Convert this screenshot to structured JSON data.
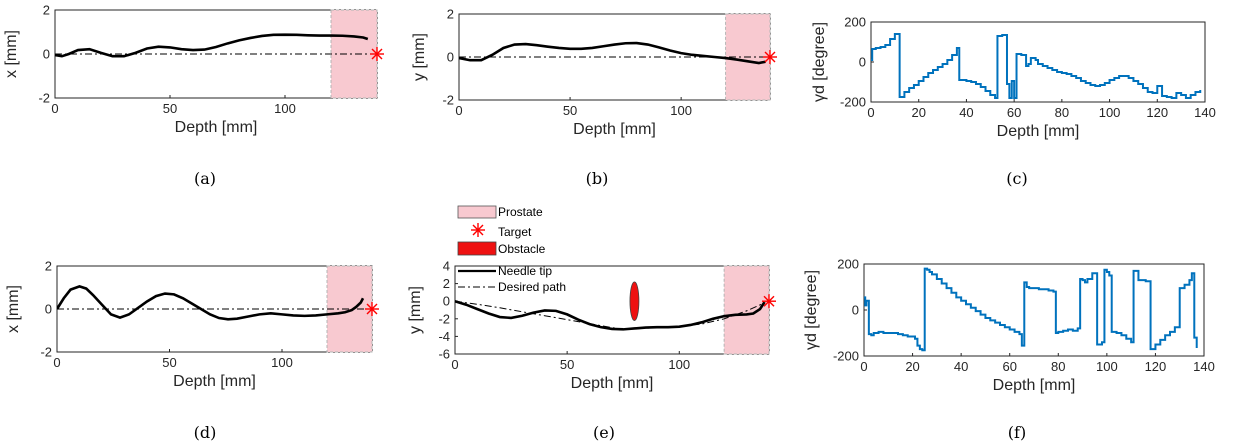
{
  "figure": {
    "captions": [
      "(a)",
      "(b)",
      "(c)",
      "(d)",
      "(e)",
      "(f)"
    ]
  },
  "colors": {
    "needle": "#000000",
    "desired": "#000000",
    "prostate_fill": "#f8c9d0",
    "prostate_edge": "#b5b5b5",
    "target": "#ff0000",
    "obstacle": "#ee1111",
    "steps": "#0072bd"
  },
  "legend": {
    "entries": [
      "Prostate",
      "Target",
      "Obstacle",
      "Needle tip",
      "Desired path"
    ]
  },
  "chart_data": [
    {
      "panel": "a",
      "type": "line",
      "xlabel": "Depth [mm]",
      "ylabel": "x [mm]",
      "xlim": [
        0,
        140
      ],
      "ylim": [
        -2,
        2
      ],
      "xticks": [
        0,
        50,
        100
      ],
      "yticks": [
        -2,
        0,
        2
      ],
      "prostate": [
        120,
        140
      ],
      "target": [
        140,
        0
      ],
      "series": [
        {
          "role": "needle",
          "x": [
            0,
            3,
            6,
            10,
            15,
            20,
            25,
            30,
            35,
            40,
            45,
            50,
            55,
            60,
            65,
            70,
            75,
            80,
            85,
            90,
            95,
            100,
            105,
            110,
            115,
            120,
            125,
            130,
            134,
            136
          ],
          "y": [
            -0.05,
            -0.1,
            0.0,
            0.18,
            0.22,
            0.05,
            -0.1,
            -0.1,
            0.05,
            0.25,
            0.33,
            0.3,
            0.22,
            0.18,
            0.2,
            0.32,
            0.48,
            0.62,
            0.73,
            0.82,
            0.87,
            0.88,
            0.87,
            0.85,
            0.84,
            0.84,
            0.83,
            0.8,
            0.75,
            0.68
          ]
        },
        {
          "role": "desired",
          "x": [
            0,
            140
          ],
          "y": [
            0,
            0
          ]
        }
      ]
    },
    {
      "panel": "b",
      "type": "line",
      "xlabel": "Depth [mm]",
      "ylabel": "y [mm]",
      "xlim": [
        0,
        140
      ],
      "ylim": [
        -2,
        2
      ],
      "xticks": [
        0,
        50,
        100
      ],
      "yticks": [
        -2,
        0,
        2
      ],
      "prostate": [
        120,
        140
      ],
      "target": [
        140,
        0
      ],
      "series": [
        {
          "role": "needle",
          "x": [
            0,
            5,
            10,
            15,
            20,
            25,
            30,
            35,
            40,
            45,
            50,
            55,
            60,
            65,
            70,
            75,
            80,
            85,
            90,
            95,
            100,
            105,
            110,
            115,
            120,
            125,
            130,
            135,
            138
          ],
          "y": [
            -0.05,
            -0.15,
            -0.15,
            0.1,
            0.42,
            0.58,
            0.6,
            0.55,
            0.48,
            0.42,
            0.38,
            0.38,
            0.42,
            0.5,
            0.58,
            0.64,
            0.65,
            0.58,
            0.45,
            0.3,
            0.18,
            0.1,
            0.05,
            0.0,
            -0.05,
            -0.12,
            -0.2,
            -0.28,
            -0.22
          ]
        },
        {
          "role": "desired",
          "x": [
            0,
            140
          ],
          "y": [
            0,
            0
          ]
        }
      ]
    },
    {
      "panel": "c",
      "type": "line",
      "xlabel": "Depth [mm]",
      "ylabel": "γd [degree]",
      "xlim": [
        0,
        140
      ],
      "ylim": [
        -200,
        200
      ],
      "xticks": [
        0,
        20,
        40,
        60,
        80,
        100,
        120,
        140
      ],
      "yticks": [
        -200,
        0,
        200
      ],
      "step": true,
      "series": [
        {
          "role": "steps",
          "x": [
            0,
            0.5,
            2,
            4,
            6,
            8,
            10,
            11,
            12,
            14,
            16,
            18,
            20,
            22,
            24,
            26,
            28,
            30,
            32,
            34,
            36,
            37,
            38,
            40,
            42,
            44,
            46,
            48,
            50,
            52,
            53,
            54,
            55,
            56,
            57,
            58,
            59,
            60,
            61,
            62,
            63,
            64,
            65,
            66,
            67,
            68,
            69,
            70,
            72,
            74,
            76,
            78,
            80,
            82,
            84,
            86,
            88,
            90,
            92,
            94,
            96,
            98,
            100,
            102,
            104,
            106,
            108,
            110,
            112,
            114,
            116,
            118,
            120,
            122,
            124,
            126,
            128,
            130,
            132,
            134,
            136,
            138
          ],
          "y": [
            10,
            65,
            70,
            75,
            85,
            115,
            140,
            140,
            -175,
            -150,
            -130,
            -115,
            -95,
            -75,
            -55,
            -40,
            -25,
            -10,
            10,
            35,
            70,
            -90,
            -90,
            -95,
            -100,
            -110,
            -125,
            -145,
            -165,
            -180,
            130,
            130,
            135,
            135,
            -110,
            -180,
            -95,
            -180,
            40,
            40,
            35,
            35,
            -20,
            -10,
            20,
            20,
            10,
            -10,
            -20,
            -30,
            -40,
            -50,
            -55,
            -60,
            -70,
            -80,
            -95,
            -105,
            -115,
            -120,
            -115,
            -105,
            -90,
            -80,
            -70,
            -70,
            -80,
            -95,
            -110,
            -130,
            -150,
            -155,
            -120,
            -170,
            -175,
            -180,
            -155,
            -165,
            -180,
            -165,
            -150,
            -140
          ]
        }
      ]
    },
    {
      "panel": "d",
      "type": "line",
      "xlabel": "Depth [mm]",
      "ylabel": "x [mm]",
      "xlim": [
        0,
        140
      ],
      "ylim": [
        -2,
        2
      ],
      "xticks": [
        0,
        50,
        100
      ],
      "yticks": [
        -2,
        0,
        2
      ],
      "prostate": [
        120,
        140
      ],
      "target": [
        140,
        0
      ],
      "series": [
        {
          "role": "needle",
          "x": [
            0,
            3,
            6,
            10,
            13,
            16,
            20,
            24,
            28,
            32,
            36,
            40,
            44,
            48,
            52,
            56,
            60,
            64,
            68,
            72,
            76,
            80,
            85,
            90,
            95,
            100,
            105,
            110,
            115,
            120,
            125,
            128,
            131,
            133,
            135,
            136
          ],
          "y": [
            0.0,
            0.5,
            0.9,
            1.05,
            0.95,
            0.65,
            0.2,
            -0.25,
            -0.4,
            -0.25,
            0.05,
            0.35,
            0.6,
            0.72,
            0.68,
            0.5,
            0.25,
            0.0,
            -0.25,
            -0.42,
            -0.48,
            -0.45,
            -0.35,
            -0.25,
            -0.2,
            -0.25,
            -0.3,
            -0.32,
            -0.3,
            -0.25,
            -0.2,
            -0.15,
            -0.05,
            0.1,
            0.3,
            0.5
          ]
        },
        {
          "role": "desired",
          "x": [
            0,
            140
          ],
          "y": [
            0,
            0
          ]
        }
      ]
    },
    {
      "panel": "e",
      "type": "line",
      "xlabel": "Depth [mm]",
      "ylabel": "y [mm]",
      "xlim": [
        0,
        140
      ],
      "ylim": [
        -6,
        4
      ],
      "xticks": [
        0,
        50,
        100
      ],
      "yticks": [
        -6,
        -4,
        -2,
        0,
        2,
        4
      ],
      "prostate": [
        120,
        140
      ],
      "target": [
        140,
        0
      ],
      "obstacle": {
        "cx": 80,
        "cy": 0,
        "rx": 2,
        "ry": 2.2
      },
      "series": [
        {
          "role": "needle",
          "x": [
            0,
            5,
            10,
            15,
            20,
            25,
            30,
            35,
            40,
            45,
            50,
            55,
            60,
            65,
            70,
            75,
            80,
            85,
            90,
            95,
            100,
            105,
            110,
            115,
            120,
            125,
            130,
            133,
            136,
            138
          ],
          "y": [
            0.0,
            -0.4,
            -0.9,
            -1.4,
            -1.8,
            -1.9,
            -1.65,
            -1.3,
            -1.05,
            -1.1,
            -1.5,
            -2.1,
            -2.6,
            -2.95,
            -3.15,
            -3.2,
            -3.1,
            -3.0,
            -2.95,
            -2.95,
            -2.9,
            -2.7,
            -2.4,
            -2.0,
            -1.7,
            -1.55,
            -1.5,
            -1.4,
            -0.9,
            -0.1
          ]
        },
        {
          "role": "desired",
          "x": [
            0,
            10,
            20,
            30,
            40,
            50,
            60,
            70,
            75,
            80,
            90,
            100,
            110,
            120,
            130,
            138
          ],
          "y": [
            0.0,
            -0.35,
            -0.75,
            -1.2,
            -1.65,
            -2.1,
            -2.55,
            -3.0,
            -3.2,
            -3.15,
            -3.0,
            -2.85,
            -2.6,
            -2.0,
            -1.1,
            -0.2
          ]
        }
      ]
    },
    {
      "panel": "f",
      "type": "line",
      "xlabel": "Depth [mm]",
      "ylabel": "γd [degree]",
      "xlim": [
        0,
        140
      ],
      "ylim": [
        -200,
        200
      ],
      "xticks": [
        0,
        20,
        40,
        60,
        80,
        100,
        120,
        140
      ],
      "yticks": [
        -200,
        0,
        200
      ],
      "step": true,
      "series": [
        {
          "role": "steps",
          "x": [
            0,
            0.5,
            1,
            2,
            3,
            4,
            6,
            8,
            10,
            12,
            14,
            16,
            18,
            20,
            21,
            22,
            23,
            24,
            25,
            26,
            27,
            28,
            30,
            32,
            34,
            36,
            38,
            40,
            42,
            44,
            46,
            48,
            50,
            52,
            54,
            56,
            58,
            60,
            62,
            64,
            65,
            66,
            67,
            68,
            70,
            72,
            74,
            76,
            78,
            79,
            80,
            82,
            84,
            86,
            88,
            89,
            90,
            91,
            92,
            94,
            96,
            98,
            99,
            100,
            101,
            102,
            104,
            106,
            108,
            110,
            111,
            112,
            113,
            114,
            116,
            118,
            120,
            122,
            124,
            126,
            128,
            130,
            132,
            134,
            135,
            136,
            137
          ],
          "y": [
            55,
            20,
            40,
            -105,
            -110,
            -100,
            -95,
            -100,
            -100,
            -100,
            -105,
            -110,
            -115,
            -115,
            -125,
            -155,
            -170,
            -175,
            180,
            175,
            165,
            155,
            135,
            115,
            95,
            75,
            55,
            40,
            25,
            10,
            -5,
            -20,
            -35,
            -45,
            -55,
            -65,
            -75,
            -85,
            -95,
            -105,
            -155,
            120,
            100,
            95,
            95,
            90,
            90,
            85,
            80,
            -100,
            -95,
            -90,
            -85,
            -90,
            -80,
            135,
            130,
            120,
            135,
            160,
            -150,
            -140,
            175,
            165,
            150,
            -95,
            -100,
            -110,
            -125,
            -140,
            170,
            170,
            130,
            130,
            125,
            -170,
            -150,
            -130,
            -110,
            -95,
            -75,
            95,
            110,
            130,
            160,
            -120,
            -165
          ]
        }
      ]
    }
  ]
}
